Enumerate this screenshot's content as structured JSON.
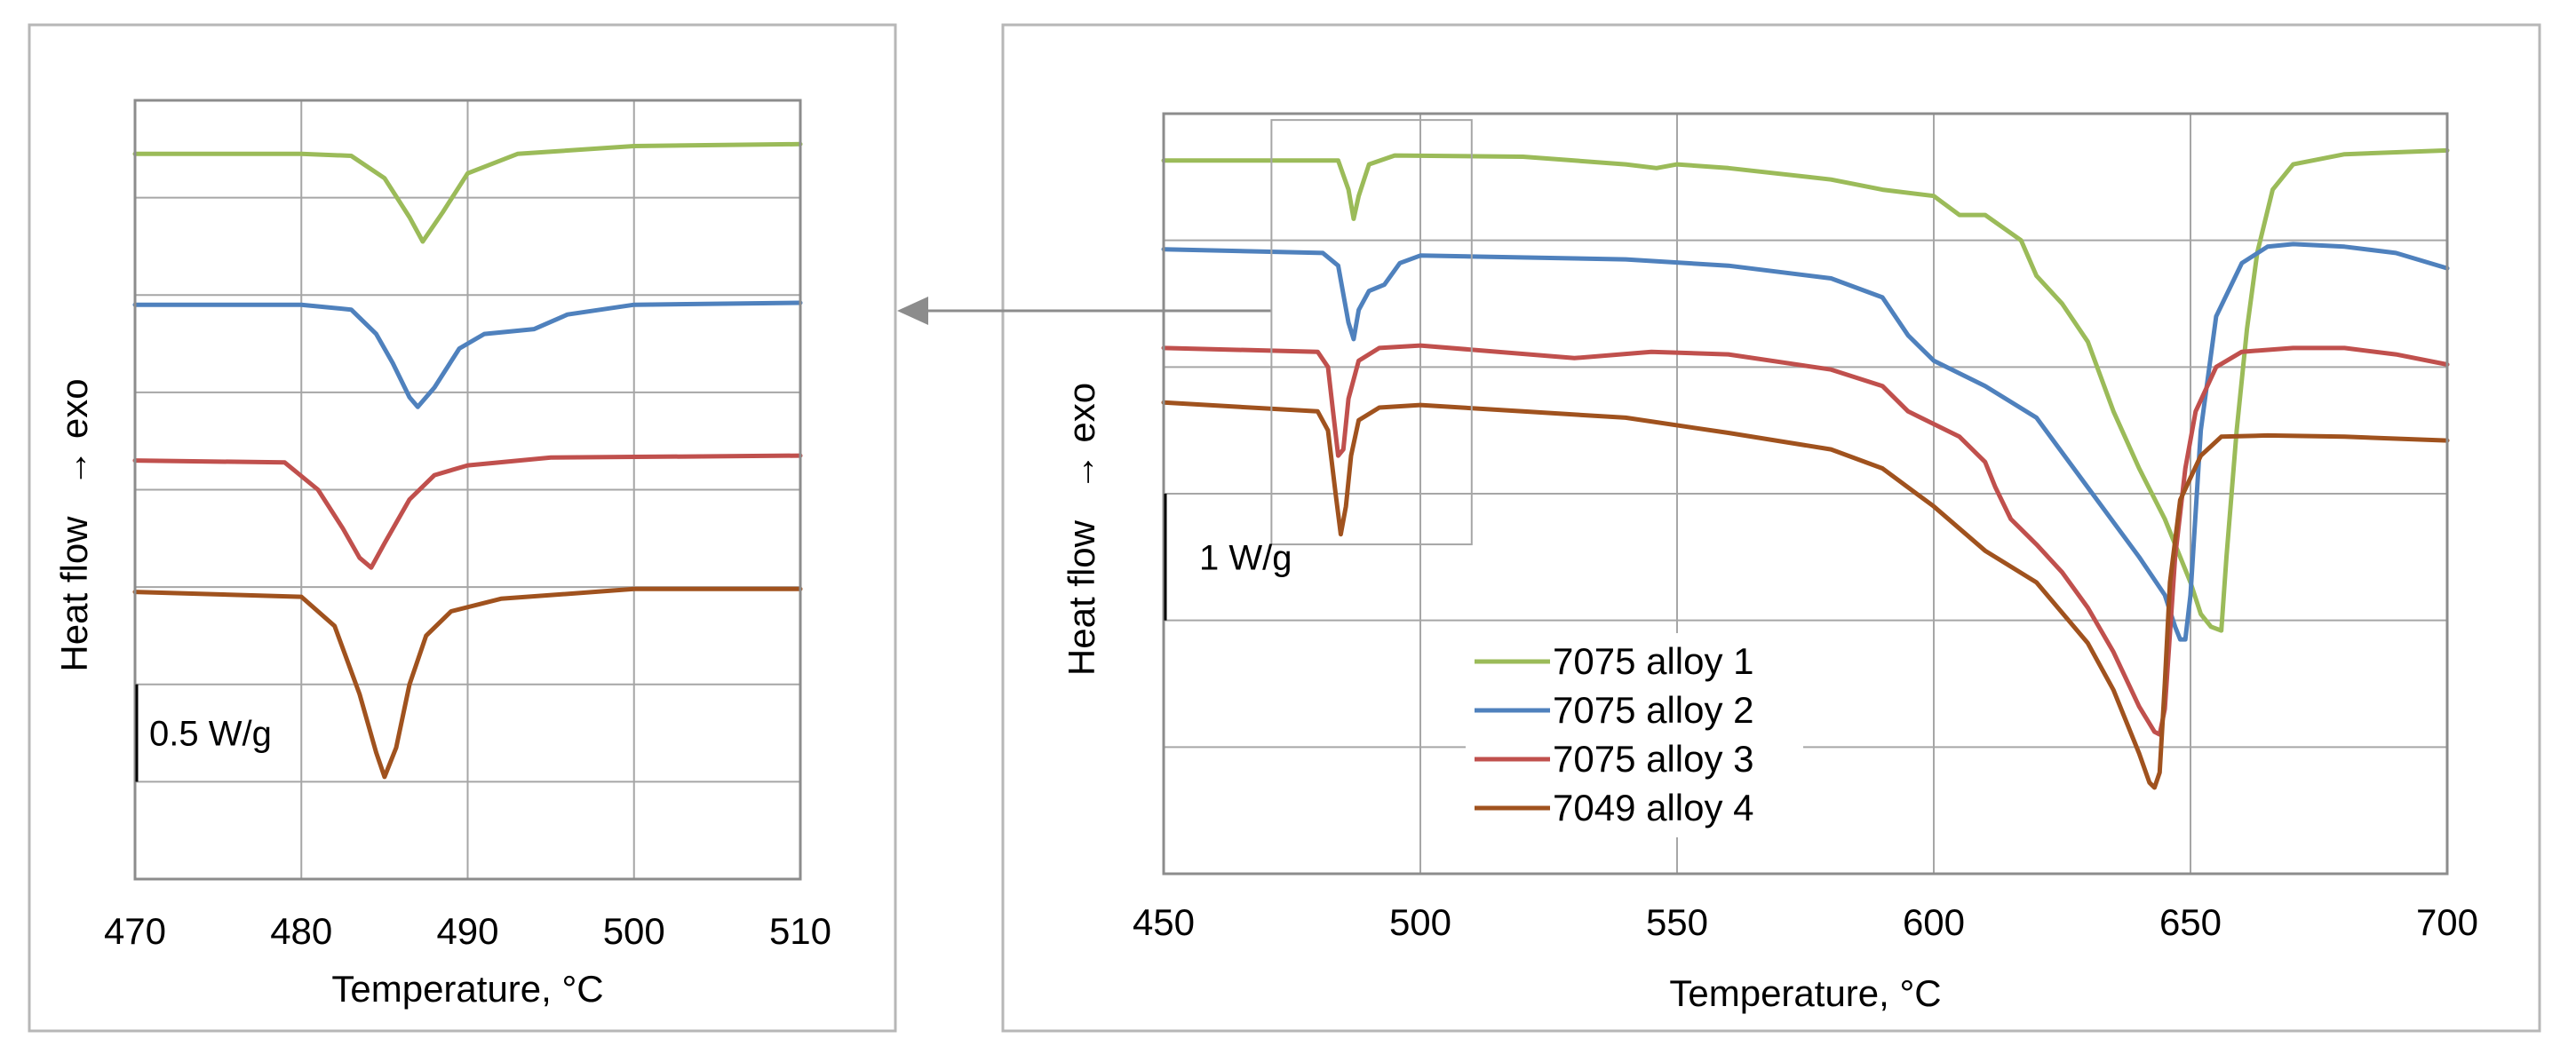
{
  "chart_data": [
    {
      "type": "line",
      "title": "",
      "xlabel": "Temperature, °C",
      "ylabel_main": "Heat flow",
      "ylabel_arrow": "→ exo",
      "xlim": [
        470,
        510
      ],
      "xticks": [
        470,
        480,
        490,
        500,
        510
      ],
      "xtick_labels": [
        "470",
        "480",
        "490",
        "500",
        "510"
      ],
      "ylim": [
        0,
        8
      ],
      "grid": true,
      "scale_bar": {
        "label": "0.5 W/g",
        "from": 1.0,
        "to": 2.0
      },
      "series": [
        {
          "name": "7075 alloy 1",
          "color": "#9bbb59",
          "points": [
            [
              470,
              7.45
            ],
            [
              480,
              7.45
            ],
            [
              483,
              7.43
            ],
            [
              485,
              7.2
            ],
            [
              486.5,
              6.8
            ],
            [
              487.3,
              6.55
            ],
            [
              488.5,
              6.85
            ],
            [
              490,
              7.25
            ],
            [
              493,
              7.45
            ],
            [
              500,
              7.53
            ],
            [
              510,
              7.55
            ]
          ]
        },
        {
          "name": "7075 alloy 2",
          "color": "#4f81bd",
          "points": [
            [
              470,
              5.9
            ],
            [
              480,
              5.9
            ],
            [
              483,
              5.85
            ],
            [
              484.5,
              5.6
            ],
            [
              485.5,
              5.3
            ],
            [
              486.5,
              4.95
            ],
            [
              487,
              4.85
            ],
            [
              488,
              5.05
            ],
            [
              489.5,
              5.45
            ],
            [
              491,
              5.6
            ],
            [
              494,
              5.65
            ],
            [
              496,
              5.8
            ],
            [
              500,
              5.9
            ],
            [
              510,
              5.92
            ]
          ]
        },
        {
          "name": "7075 alloy 3",
          "color": "#c0504d",
          "points": [
            [
              470,
              4.3
            ],
            [
              479,
              4.28
            ],
            [
              481,
              4.0
            ],
            [
              482.5,
              3.6
            ],
            [
              483.5,
              3.3
            ],
            [
              484.2,
              3.2
            ],
            [
              485,
              3.45
            ],
            [
              486.5,
              3.9
            ],
            [
              488,
              4.15
            ],
            [
              490,
              4.25
            ],
            [
              495,
              4.33
            ],
            [
              510,
              4.35
            ]
          ]
        },
        {
          "name": "7049 alloy 4",
          "color": "#a0521e",
          "points": [
            [
              470,
              2.95
            ],
            [
              480,
              2.9
            ],
            [
              482,
              2.6
            ],
            [
              483.5,
              1.9
            ],
            [
              484.5,
              1.3
            ],
            [
              485,
              1.05
            ],
            [
              485.7,
              1.35
            ],
            [
              486.5,
              2.0
            ],
            [
              487.5,
              2.5
            ],
            [
              489,
              2.75
            ],
            [
              492,
              2.88
            ],
            [
              500,
              2.98
            ],
            [
              510,
              2.98
            ]
          ]
        }
      ]
    },
    {
      "type": "line",
      "title": "",
      "xlabel": "Temperature, °C",
      "ylabel_main": "Heat flow",
      "ylabel_arrow": "→ exo",
      "xlim": [
        450,
        700
      ],
      "xticks": [
        450,
        500,
        550,
        600,
        650,
        700
      ],
      "xtick_labels": [
        "450",
        "500",
        "550",
        "600",
        "650",
        "700"
      ],
      "ylim": [
        0,
        6
      ],
      "grid": true,
      "legend": "lower-center",
      "scale_bar": {
        "label": "1 W/g",
        "from": 2.0,
        "to": 3.0
      },
      "zoom_box": {
        "x": [
          471,
          510
        ],
        "y": [
          2.6,
          5.95
        ]
      },
      "series": [
        {
          "name": "7075 alloy 1",
          "color": "#9bbb59",
          "points": [
            [
              450,
              5.63
            ],
            [
              484,
              5.63
            ],
            [
              486,
              5.4
            ],
            [
              487,
              5.17
            ],
            [
              488,
              5.35
            ],
            [
              490,
              5.6
            ],
            [
              495,
              5.67
            ],
            [
              520,
              5.66
            ],
            [
              540,
              5.6
            ],
            [
              546,
              5.57
            ],
            [
              550,
              5.6
            ],
            [
              560,
              5.57
            ],
            [
              580,
              5.48
            ],
            [
              590,
              5.4
            ],
            [
              600,
              5.35
            ],
            [
              605,
              5.2
            ],
            [
              610,
              5.2
            ],
            [
              617,
              5.0
            ],
            [
              620,
              4.72
            ],
            [
              625,
              4.5
            ],
            [
              630,
              4.2
            ],
            [
              635,
              3.65
            ],
            [
              640,
              3.2
            ],
            [
              645,
              2.8
            ],
            [
              650,
              2.3
            ],
            [
              652,
              2.05
            ],
            [
              654,
              1.95
            ],
            [
              656,
              1.92
            ],
            [
              657,
              2.5
            ],
            [
              659,
              3.5
            ],
            [
              661,
              4.3
            ],
            [
              663,
              4.9
            ],
            [
              666,
              5.4
            ],
            [
              670,
              5.6
            ],
            [
              680,
              5.68
            ],
            [
              700,
              5.71
            ]
          ]
        },
        {
          "name": "7075 alloy 2",
          "color": "#4f81bd",
          "points": [
            [
              450,
              4.93
            ],
            [
              481,
              4.9
            ],
            [
              484,
              4.8
            ],
            [
              486,
              4.35
            ],
            [
              487,
              4.22
            ],
            [
              488,
              4.45
            ],
            [
              490,
              4.6
            ],
            [
              493,
              4.65
            ],
            [
              496,
              4.82
            ],
            [
              500,
              4.88
            ],
            [
              540,
              4.85
            ],
            [
              560,
              4.8
            ],
            [
              580,
              4.7
            ],
            [
              590,
              4.55
            ],
            [
              595,
              4.25
            ],
            [
              600,
              4.05
            ],
            [
              610,
              3.85
            ],
            [
              620,
              3.6
            ],
            [
              630,
              3.05
            ],
            [
              640,
              2.5
            ],
            [
              645,
              2.2
            ],
            [
              647,
              1.95
            ],
            [
              648,
              1.85
            ],
            [
              649,
              1.85
            ],
            [
              650,
              2.2
            ],
            [
              652,
              3.5
            ],
            [
              655,
              4.4
            ],
            [
              660,
              4.82
            ],
            [
              665,
              4.95
            ],
            [
              670,
              4.97
            ],
            [
              680,
              4.95
            ],
            [
              690,
              4.9
            ],
            [
              700,
              4.78
            ]
          ]
        },
        {
          "name": "7075 alloy 3",
          "color": "#c0504d",
          "points": [
            [
              450,
              4.15
            ],
            [
              480,
              4.12
            ],
            [
              482,
              4.0
            ],
            [
              483,
              3.65
            ],
            [
              484,
              3.3
            ],
            [
              485,
              3.35
            ],
            [
              486,
              3.75
            ],
            [
              488,
              4.05
            ],
            [
              492,
              4.15
            ],
            [
              500,
              4.17
            ],
            [
              530,
              4.07
            ],
            [
              545,
              4.12
            ],
            [
              560,
              4.1
            ],
            [
              580,
              3.98
            ],
            [
              590,
              3.85
            ],
            [
              595,
              3.65
            ],
            [
              605,
              3.45
            ],
            [
              610,
              3.25
            ],
            [
              612,
              3.05
            ],
            [
              615,
              2.8
            ],
            [
              620,
              2.6
            ],
            [
              625,
              2.38
            ],
            [
              630,
              2.1
            ],
            [
              635,
              1.75
            ],
            [
              640,
              1.32
            ],
            [
              643,
              1.12
            ],
            [
              644,
              1.1
            ],
            [
              645,
              1.3
            ],
            [
              647,
              2.5
            ],
            [
              649,
              3.2
            ],
            [
              651,
              3.65
            ],
            [
              655,
              4.0
            ],
            [
              660,
              4.12
            ],
            [
              670,
              4.15
            ],
            [
              680,
              4.15
            ],
            [
              690,
              4.1
            ],
            [
              700,
              4.02
            ]
          ]
        },
        {
          "name": "7049 alloy 4",
          "color": "#a0521e",
          "points": [
            [
              450,
              3.72
            ],
            [
              480,
              3.65
            ],
            [
              482,
              3.5
            ],
            [
              483.5,
              3.0
            ],
            [
              484.5,
              2.68
            ],
            [
              485.5,
              2.9
            ],
            [
              486.5,
              3.3
            ],
            [
              488,
              3.58
            ],
            [
              492,
              3.68
            ],
            [
              500,
              3.7
            ],
            [
              520,
              3.65
            ],
            [
              540,
              3.6
            ],
            [
              560,
              3.48
            ],
            [
              580,
              3.35
            ],
            [
              590,
              3.2
            ],
            [
              600,
              2.9
            ],
            [
              610,
              2.55
            ],
            [
              620,
              2.3
            ],
            [
              630,
              1.82
            ],
            [
              635,
              1.45
            ],
            [
              640,
              0.95
            ],
            [
              642,
              0.72
            ],
            [
              643,
              0.68
            ],
            [
              644,
              0.8
            ],
            [
              645,
              1.5
            ],
            [
              646,
              2.3
            ],
            [
              648,
              2.95
            ],
            [
              652,
              3.3
            ],
            [
              656,
              3.45
            ],
            [
              665,
              3.46
            ],
            [
              680,
              3.45
            ],
            [
              700,
              3.42
            ]
          ]
        }
      ]
    }
  ]
}
